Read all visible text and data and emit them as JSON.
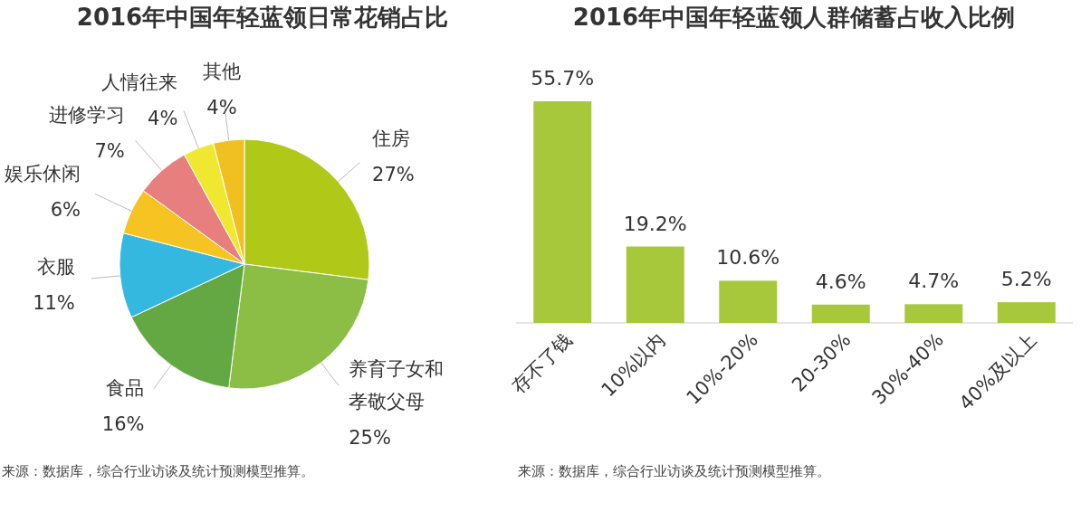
{
  "chart_data": [
    {
      "type": "pie",
      "title": "2016年中国年轻蓝领日常花销占比",
      "categories": [
        "住房",
        "养育子女和孝敬父母",
        "食品",
        "衣服",
        "娱乐休闲",
        "进修学习",
        "人情往来",
        "其他"
      ],
      "values": [
        27,
        25,
        16,
        11,
        6,
        7,
        4,
        4
      ],
      "colors": [
        "#b0c918",
        "#8cbd45",
        "#64a844",
        "#35b8e0",
        "#f5c322",
        "#e87f7f",
        "#f0e830",
        "#f0c020"
      ],
      "value_labels": [
        "27%",
        "25%",
        "16%",
        "11%",
        "6%",
        "7%",
        "4%",
        "4%"
      ],
      "annotations": [
        "来源：数据库，综合行业访谈及统计预测模型推算。"
      ]
    },
    {
      "type": "bar",
      "title": "2016年中国年轻蓝领人群储蓄占收入比例",
      "categories": [
        "存不了钱",
        "10%以内",
        "10%-20%",
        "20-30%",
        "30%-40%",
        "40%及以上"
      ],
      "values": [
        55.7,
        19.2,
        10.6,
        4.6,
        4.7,
        5.2
      ],
      "color": "#a8c83c",
      "data_labels": true,
      "value_labels": [
        "55.7%",
        "19.2%",
        "10.6%",
        "4.6%",
        "4.7%",
        "5.2%"
      ],
      "annotations": [
        "来源：数据库，综合行业访谈及统计预测模型推算。"
      ]
    }
  ]
}
